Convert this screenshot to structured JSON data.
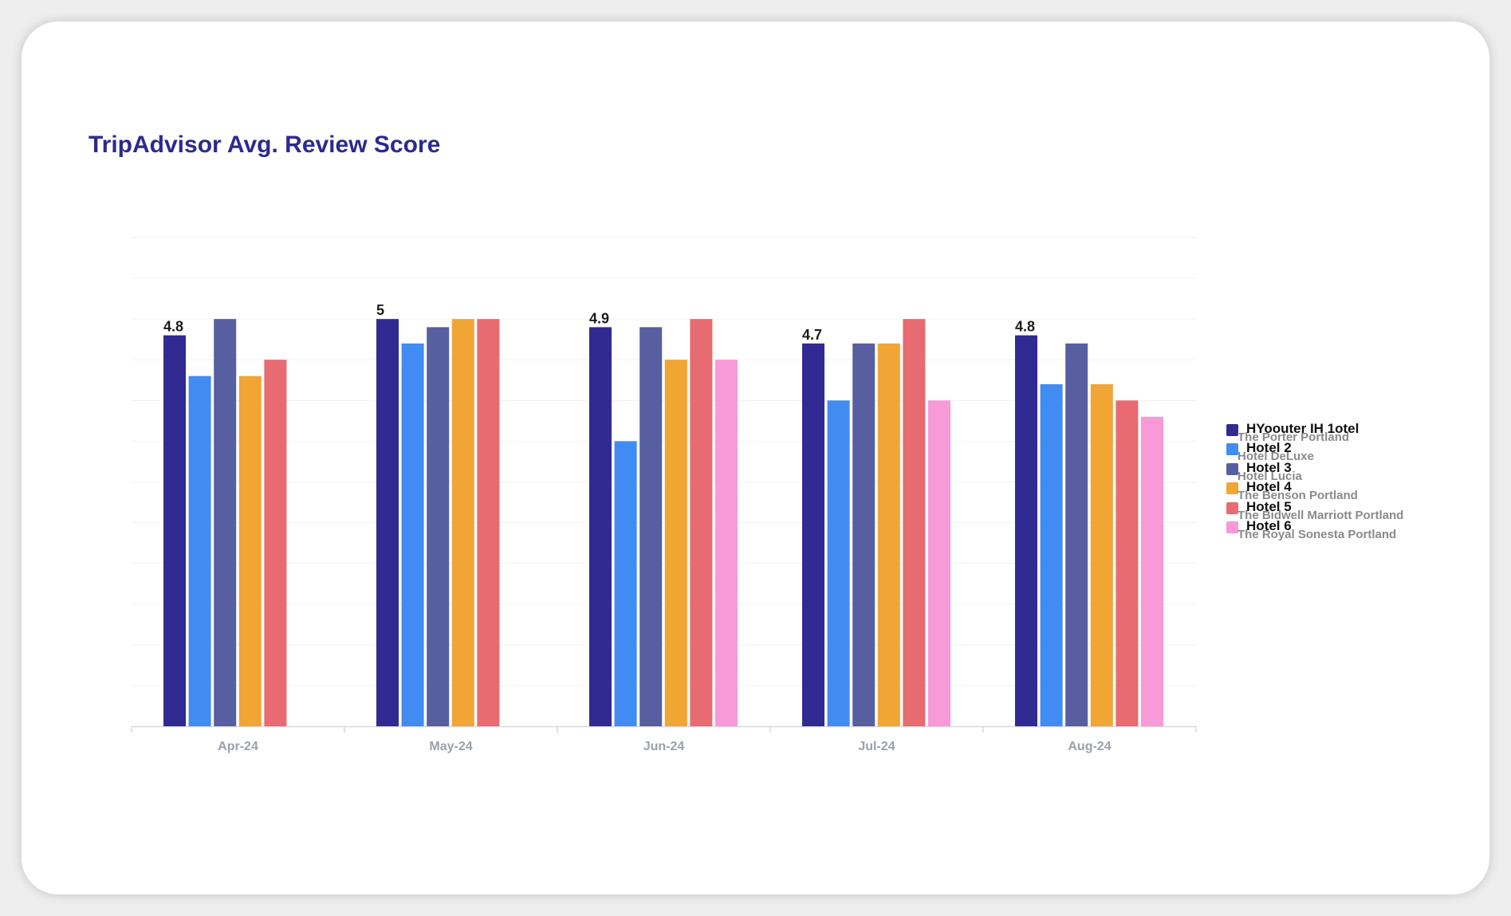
{
  "chart_data": {
    "type": "bar",
    "title": "TripAdvisor Avg. Review Score",
    "xlabel": "",
    "ylabel": "",
    "categories": [
      "Apr-24",
      "May-24",
      "Jun-24",
      "Jul-24",
      "Aug-24"
    ],
    "ylim": [
      0,
      6
    ],
    "grid": true,
    "legend_position": "right",
    "series": [
      {
        "name": "HYoouter IH 1otel",
        "subtitle": "The Porter Portland",
        "color": "#312a92",
        "values": [
          4.8,
          5.0,
          4.9,
          4.7,
          4.8
        ],
        "labels": [
          "4.8",
          "5",
          "4.9",
          "4.7",
          "4.8"
        ]
      },
      {
        "name": "Hotel 2",
        "subtitle": "Hotel DeLuxe",
        "color": "#418cf2",
        "values": [
          4.3,
          4.7,
          3.5,
          4.0,
          4.2
        ]
      },
      {
        "name": "Hotel 3",
        "subtitle": "Hotel Lucia",
        "color": "#585fa0",
        "values": [
          5.0,
          4.9,
          4.9,
          4.7,
          4.7
        ]
      },
      {
        "name": "Hotel 4",
        "subtitle": "The Benson Portland",
        "color": "#f0a535",
        "values": [
          4.3,
          5.0,
          4.5,
          4.7,
          4.2
        ]
      },
      {
        "name": "Hotel 5",
        "subtitle": "The Bidwell Marriott Portland",
        "color": "#e76b70",
        "values": [
          4.5,
          5.0,
          5.0,
          5.0,
          4.0
        ]
      },
      {
        "name": "Hotel 6",
        "subtitle": "The Royal Sonesta Portland",
        "color": "#f89ad7",
        "values": [
          null,
          null,
          4.5,
          4.0,
          3.8
        ]
      }
    ]
  }
}
